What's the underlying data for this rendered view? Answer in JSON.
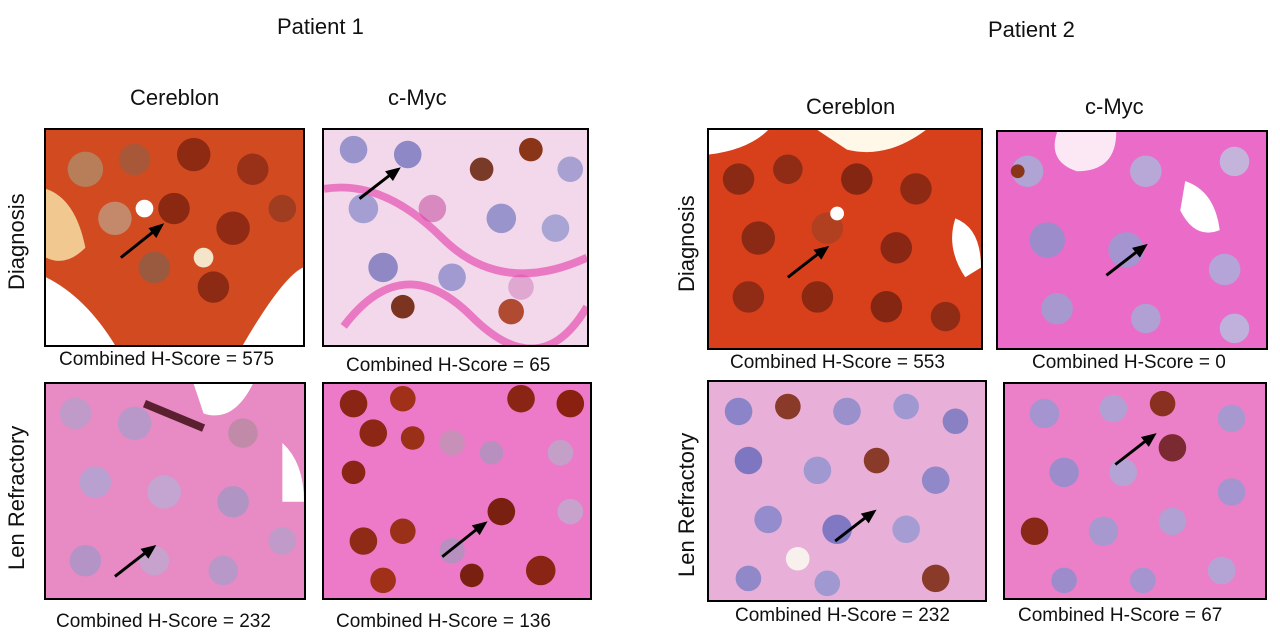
{
  "patients": [
    {
      "title": "Patient 1",
      "columns": [
        "Cereblon",
        "c-Myc"
      ],
      "rows": [
        "Diagnosis",
        "Len Refractory"
      ],
      "scores": {
        "diagnosis_cereblon": "Combined H-Score = 575",
        "diagnosis_cmyc": "Combined H-Score = 65",
        "refractory_cereblon": "Combined H-Score = 232",
        "refractory_cmyc": "Combined H-Score = 136"
      }
    },
    {
      "title": "Patient 2",
      "columns": [
        "Cereblon",
        "c-Myc"
      ],
      "rows": [
        "Diagnosis",
        "Len Refractory"
      ],
      "scores": {
        "diagnosis_cereblon": "Combined H-Score = 553",
        "diagnosis_cmyc": "Combined H-Score = 0",
        "refractory_cereblon": "Combined H-Score = 232",
        "refractory_cmyc": "Combined H-Score = 67"
      }
    }
  ],
  "colors": {
    "cereblon_high": "#c8321a",
    "stain_magenta": "#e23aa8",
    "nucleus_blue": "#8c84c8",
    "nucleus_brown": "#8a2414",
    "arrow": "#000000"
  }
}
